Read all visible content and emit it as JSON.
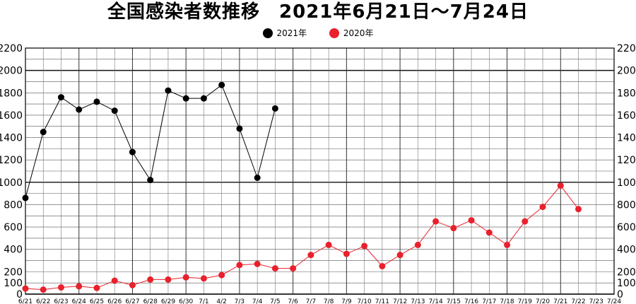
{
  "chart_data": {
    "type": "line",
    "title": "全国感染者数推移　2021年6月21日～7月24日",
    "categories": [
      "6/21",
      "6/22",
      "6/23",
      "6/24",
      "6/25",
      "6/26",
      "6/27",
      "6/28",
      "6/29",
      "6/30",
      "7/1",
      "4/2",
      "7/3",
      "7/4",
      "7/5",
      "7/6",
      "7/7",
      "7/8",
      "7/9",
      "7/10",
      "7/11",
      "7/12",
      "7/13",
      "7/14",
      "7/15",
      "7/16",
      "7/17",
      "7/18",
      "7/19",
      "7/20",
      "7/21",
      "7/22",
      "7/23",
      "7/24"
    ],
    "y_ticks": [
      0,
      100,
      200,
      400,
      600,
      800,
      1000,
      1200,
      1400,
      1600,
      1800,
      2000,
      2200
    ],
    "ylim": [
      0,
      2200
    ],
    "grid": true,
    "legend_position": "top-center",
    "series": [
      {
        "name": "2021年",
        "color": "#000000",
        "values": [
          860,
          1450,
          1760,
          1650,
          1720,
          1640,
          1270,
          1020,
          1820,
          1750,
          1750,
          1870,
          1480,
          1040,
          1660,
          null,
          null,
          null,
          null,
          null,
          null,
          null,
          null,
          null,
          null,
          null,
          null,
          null,
          null,
          null,
          null,
          null,
          null,
          null
        ]
      },
      {
        "name": "2020年",
        "color": "#e8212c",
        "values": [
          50,
          40,
          60,
          70,
          55,
          120,
          80,
          130,
          130,
          150,
          140,
          170,
          260,
          270,
          230,
          230,
          350,
          440,
          360,
          430,
          250,
          350,
          440,
          650,
          590,
          660,
          550,
          440,
          650,
          780,
          970,
          760,
          null,
          null
        ]
      }
    ]
  }
}
